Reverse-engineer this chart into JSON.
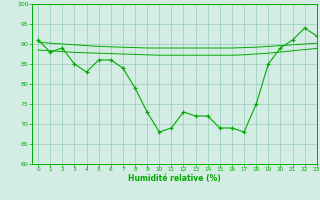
{
  "x": [
    0,
    1,
    2,
    3,
    4,
    5,
    6,
    7,
    8,
    9,
    10,
    11,
    12,
    13,
    14,
    15,
    16,
    17,
    18,
    19,
    20,
    21,
    22,
    23
  ],
  "y_main": [
    91,
    88,
    89,
    85,
    83,
    86,
    86,
    84,
    79,
    73,
    68,
    69,
    73,
    72,
    72,
    69,
    69,
    68,
    75,
    85,
    89,
    91,
    94,
    92
  ],
  "y_trend1": [
    90.5,
    90.2,
    90.0,
    89.8,
    89.6,
    89.4,
    89.3,
    89.2,
    89.1,
    89.0,
    89.0,
    89.0,
    89.0,
    89.0,
    89.0,
    89.0,
    89.0,
    89.1,
    89.2,
    89.4,
    89.6,
    89.8,
    90.0,
    90.2
  ],
  "y_trend2": [
    88.5,
    88.3,
    88.1,
    87.9,
    87.8,
    87.7,
    87.6,
    87.5,
    87.4,
    87.3,
    87.2,
    87.2,
    87.2,
    87.2,
    87.2,
    87.2,
    87.2,
    87.3,
    87.5,
    87.7,
    88.0,
    88.3,
    88.6,
    88.9
  ],
  "line_color": "#00aa00",
  "bg_color": "#d4ede4",
  "grid_color": "#99ccbb",
  "xlabel": "Humidité relative (%)",
  "ylim": [
    60,
    100
  ],
  "xlim": [
    -0.5,
    23
  ],
  "yticks": [
    60,
    65,
    70,
    75,
    80,
    85,
    90,
    95,
    100
  ],
  "xticks": [
    0,
    1,
    2,
    3,
    4,
    5,
    6,
    7,
    8,
    9,
    10,
    11,
    12,
    13,
    14,
    15,
    16,
    17,
    18,
    19,
    20,
    21,
    22,
    23
  ]
}
